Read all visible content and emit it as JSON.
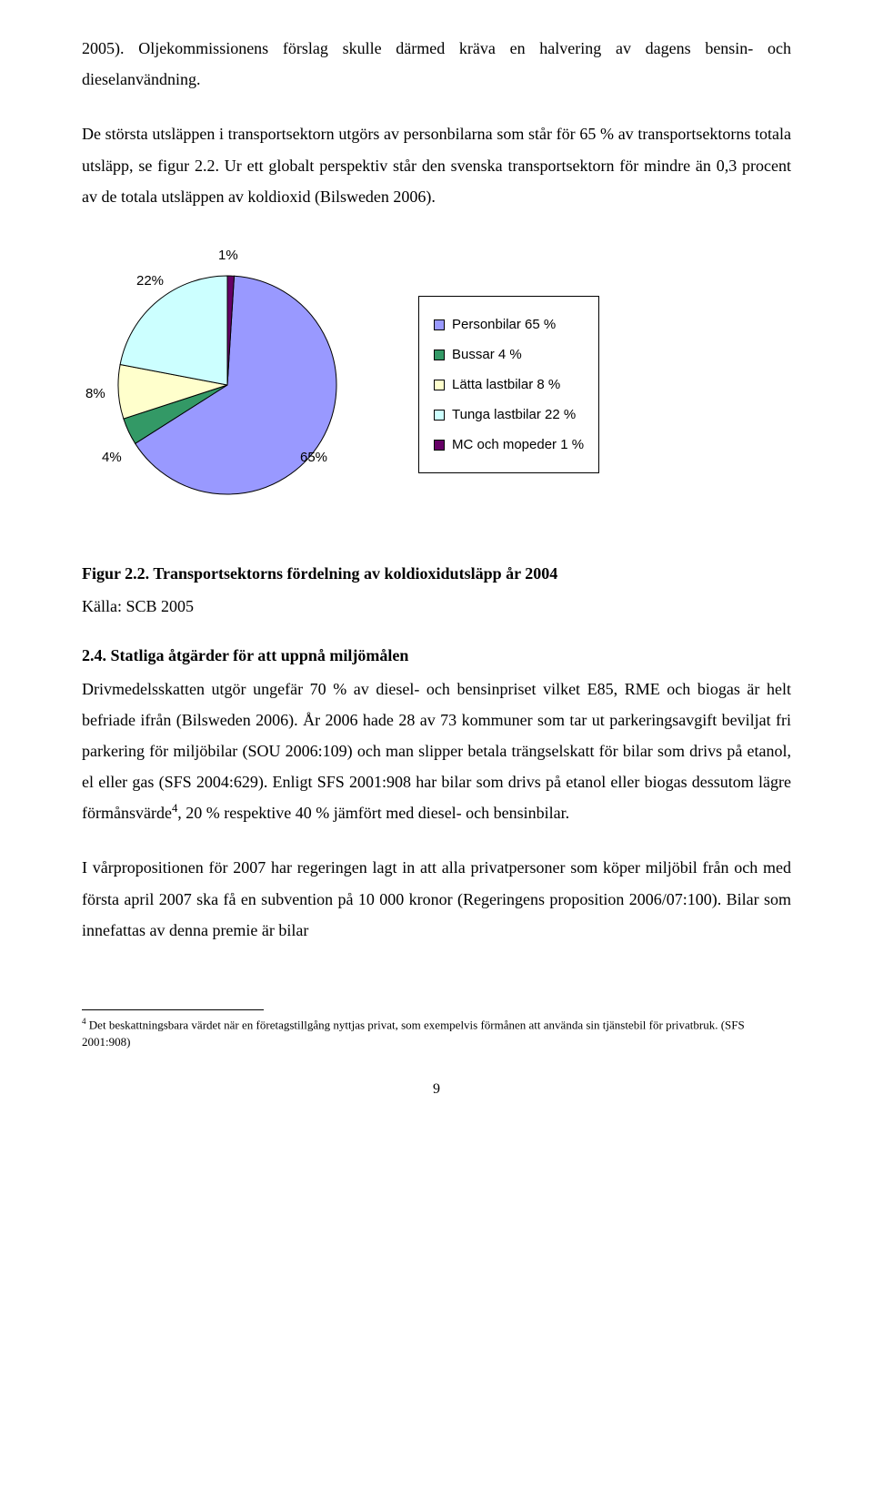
{
  "paragraph1": "2005). Oljekommissionens förslag skulle därmed kräva en halvering av dagens bensin- och dieselanvändning.",
  "paragraph2": "De största utsläppen i transportsektorn utgörs av personbilarna som står för 65 % av transportsektorns totala utsläpp, se figur 2.2. Ur ett globalt perspektiv står den svenska transportsektorn för mindre än 0,3 procent av de totala utsläppen av koldioxid (Bilsweden 2006).",
  "chart": {
    "type": "pie",
    "slices": [
      {
        "label": "65%",
        "value": 65,
        "fill": "#9999ff"
      },
      {
        "label": "4%",
        "value": 4,
        "fill": "#339966"
      },
      {
        "label": "8%",
        "value": 8,
        "fill": "#ffffcc"
      },
      {
        "label": "22%",
        "value": 22,
        "fill": "#ccffff"
      },
      {
        "label": "1%",
        "value": 1,
        "fill": "#660066"
      }
    ],
    "outline_color": "#000000",
    "slice_labels": {
      "22%": "22%",
      "1%": "1%",
      "8%": "8%",
      "4%": "4%",
      "65%": "65%"
    },
    "legend": [
      {
        "text": "Personbilar 65 %",
        "fill": "#9999ff"
      },
      {
        "text": "Bussar 4 %",
        "fill": "#339966"
      },
      {
        "text": "Lätta lastbilar 8 %",
        "fill": "#ffffcc"
      },
      {
        "text": "Tunga lastbilar 22 %",
        "fill": "#ccffff"
      },
      {
        "text": "MC och mopeder 1 %",
        "fill": "#660066"
      }
    ]
  },
  "caption_bold": "Figur 2.2. Transportsektorns fördelning av koldioxidutsläpp år 2004",
  "caption_src": "Källa: SCB 2005",
  "section_head": "2.4. Statliga åtgärder för att uppnå miljömålen",
  "paragraph3a": "Drivmedelsskatten utgör ungefär 70 % av diesel- och bensinpriset vilket E85, RME och biogas är helt befriade ifrån (Bilsweden 2006). År 2006 hade 28 av 73 kommuner som tar ut parkeringsavgift beviljat fri parkering för miljöbilar (SOU 2006:109) och man slipper betala trängselskatt för bilar som drivs på etanol, el eller gas (SFS 2004:629). Enligt SFS 2001:908 har bilar som drivs på etanol eller biogas dessutom lägre förmånsvärde",
  "footnote_ref": "4",
  "paragraph3b": ", 20 % respektive 40 % jämfört med diesel- och bensinbilar.",
  "paragraph4": "I vårpropositionen för 2007 har regeringen lagt in att alla privatpersoner som köper miljöbil från och med första april 2007 ska få en subvention på 10 000 kronor (Regeringens proposition 2006/07:100). Bilar som innefattas av denna premie är bilar",
  "footnote_num": "4",
  "footnote_text": " Det beskattningsbara värdet när en företagstillgång nyttjas privat, som exempelvis förmånen att använda sin tjänstebil för privatbruk. (SFS 2001:908)",
  "page_number": "9"
}
